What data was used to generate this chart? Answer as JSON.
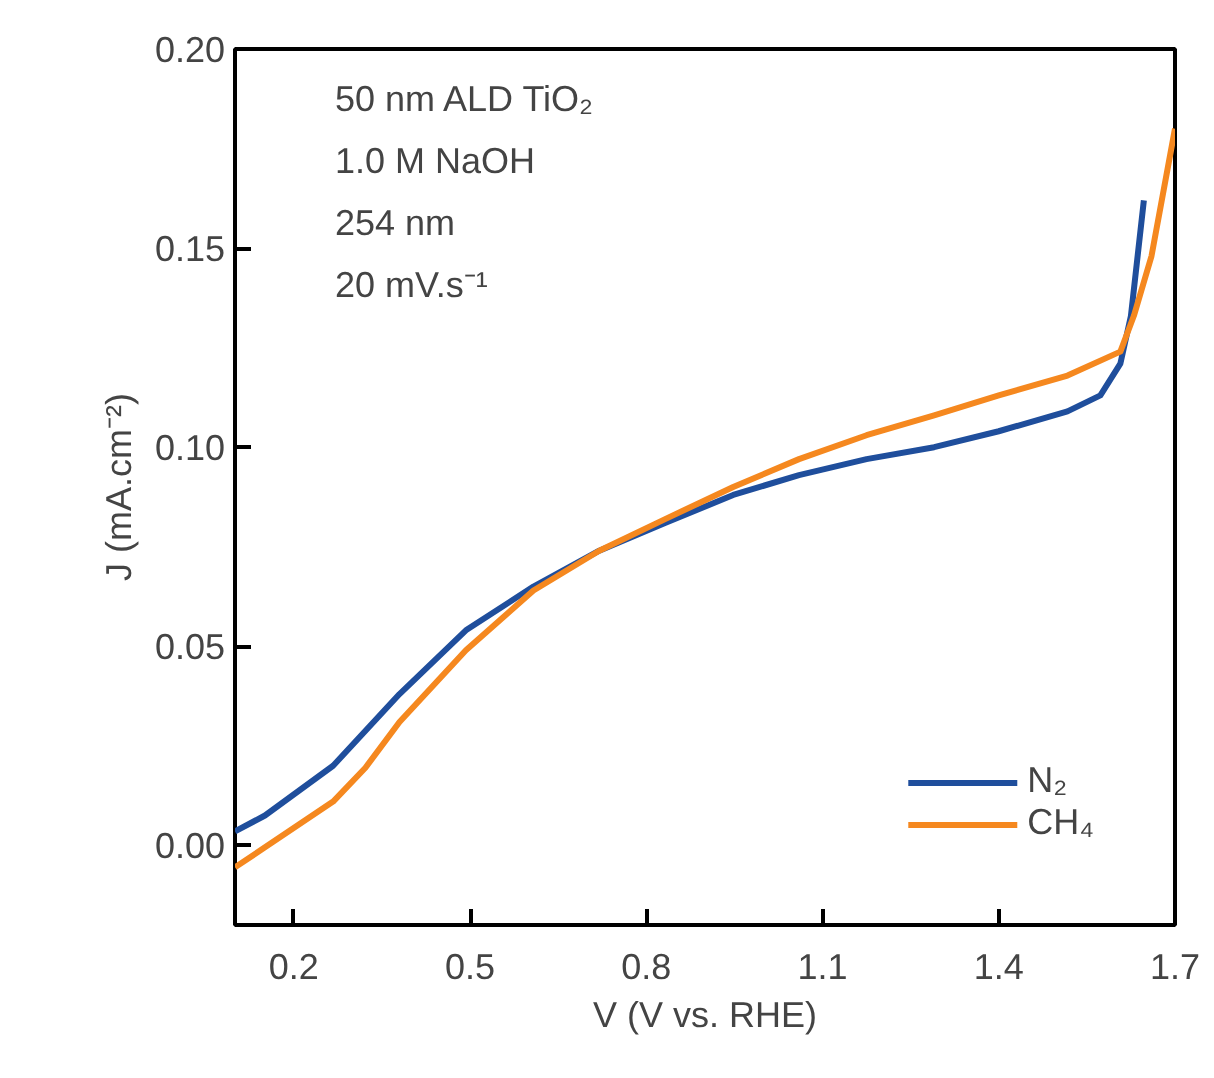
{
  "chart_data": {
    "type": "line",
    "xlabel": "V (V vs. RHE)",
    "ylabel": "J (mA.cm⁻²)",
    "xlim": [
      0.1,
      1.7
    ],
    "xticks": [
      0.2,
      0.5,
      0.8,
      1.1,
      1.4,
      1.7
    ],
    "ylim": [
      -0.02,
      0.2
    ],
    "yticks": [
      {
        "value": 0,
        "label": "0.00"
      },
      {
        "value": 0.05,
        "label": "0.05"
      },
      {
        "value": 0.1,
        "label": "0.10"
      },
      {
        "value": 0.15,
        "label": "0.15"
      },
      {
        "value": 0.2,
        "label": "0.20"
      }
    ],
    "annotations": [
      "50 nm ALD TiO₂",
      "1.0 M NaOH",
      "254 nm",
      "20 mV.s⁻¹"
    ],
    "grid": false,
    "legend": "bottom right",
    "marker": "none",
    "line_style": "solid",
    "series": [
      {
        "name": "N₂",
        "color": "#1f4e9c",
        "x": [
          0.1,
          0.151,
          0.267,
          0.38,
          0.493,
          0.608,
          0.72,
          0.833,
          0.948,
          1.06,
          1.175,
          1.29,
          1.4,
          1.517,
          1.573,
          1.607,
          1.625,
          1.647
        ],
        "values": [
          0.0035,
          0.0075,
          0.02,
          0.038,
          0.054,
          0.065,
          0.074,
          0.081,
          0.088,
          0.093,
          0.097,
          0.1,
          0.104,
          0.109,
          0.113,
          0.121,
          0.133,
          0.162
        ]
      },
      {
        "name": "CH₄",
        "color": "#f5881f",
        "x": [
          0.1,
          0.151,
          0.267,
          0.322,
          0.38,
          0.493,
          0.608,
          0.72,
          0.833,
          0.948,
          1.06,
          1.175,
          1.29,
          1.4,
          1.517,
          1.607,
          1.63,
          1.66,
          1.7
        ],
        "values": [
          -0.0055,
          -0.0005,
          0.011,
          0.0195,
          0.031,
          0.049,
          0.064,
          0.074,
          0.082,
          0.09,
          0.097,
          0.103,
          0.108,
          0.113,
          0.118,
          0.124,
          0.133,
          0.148,
          0.18
        ]
      }
    ]
  }
}
